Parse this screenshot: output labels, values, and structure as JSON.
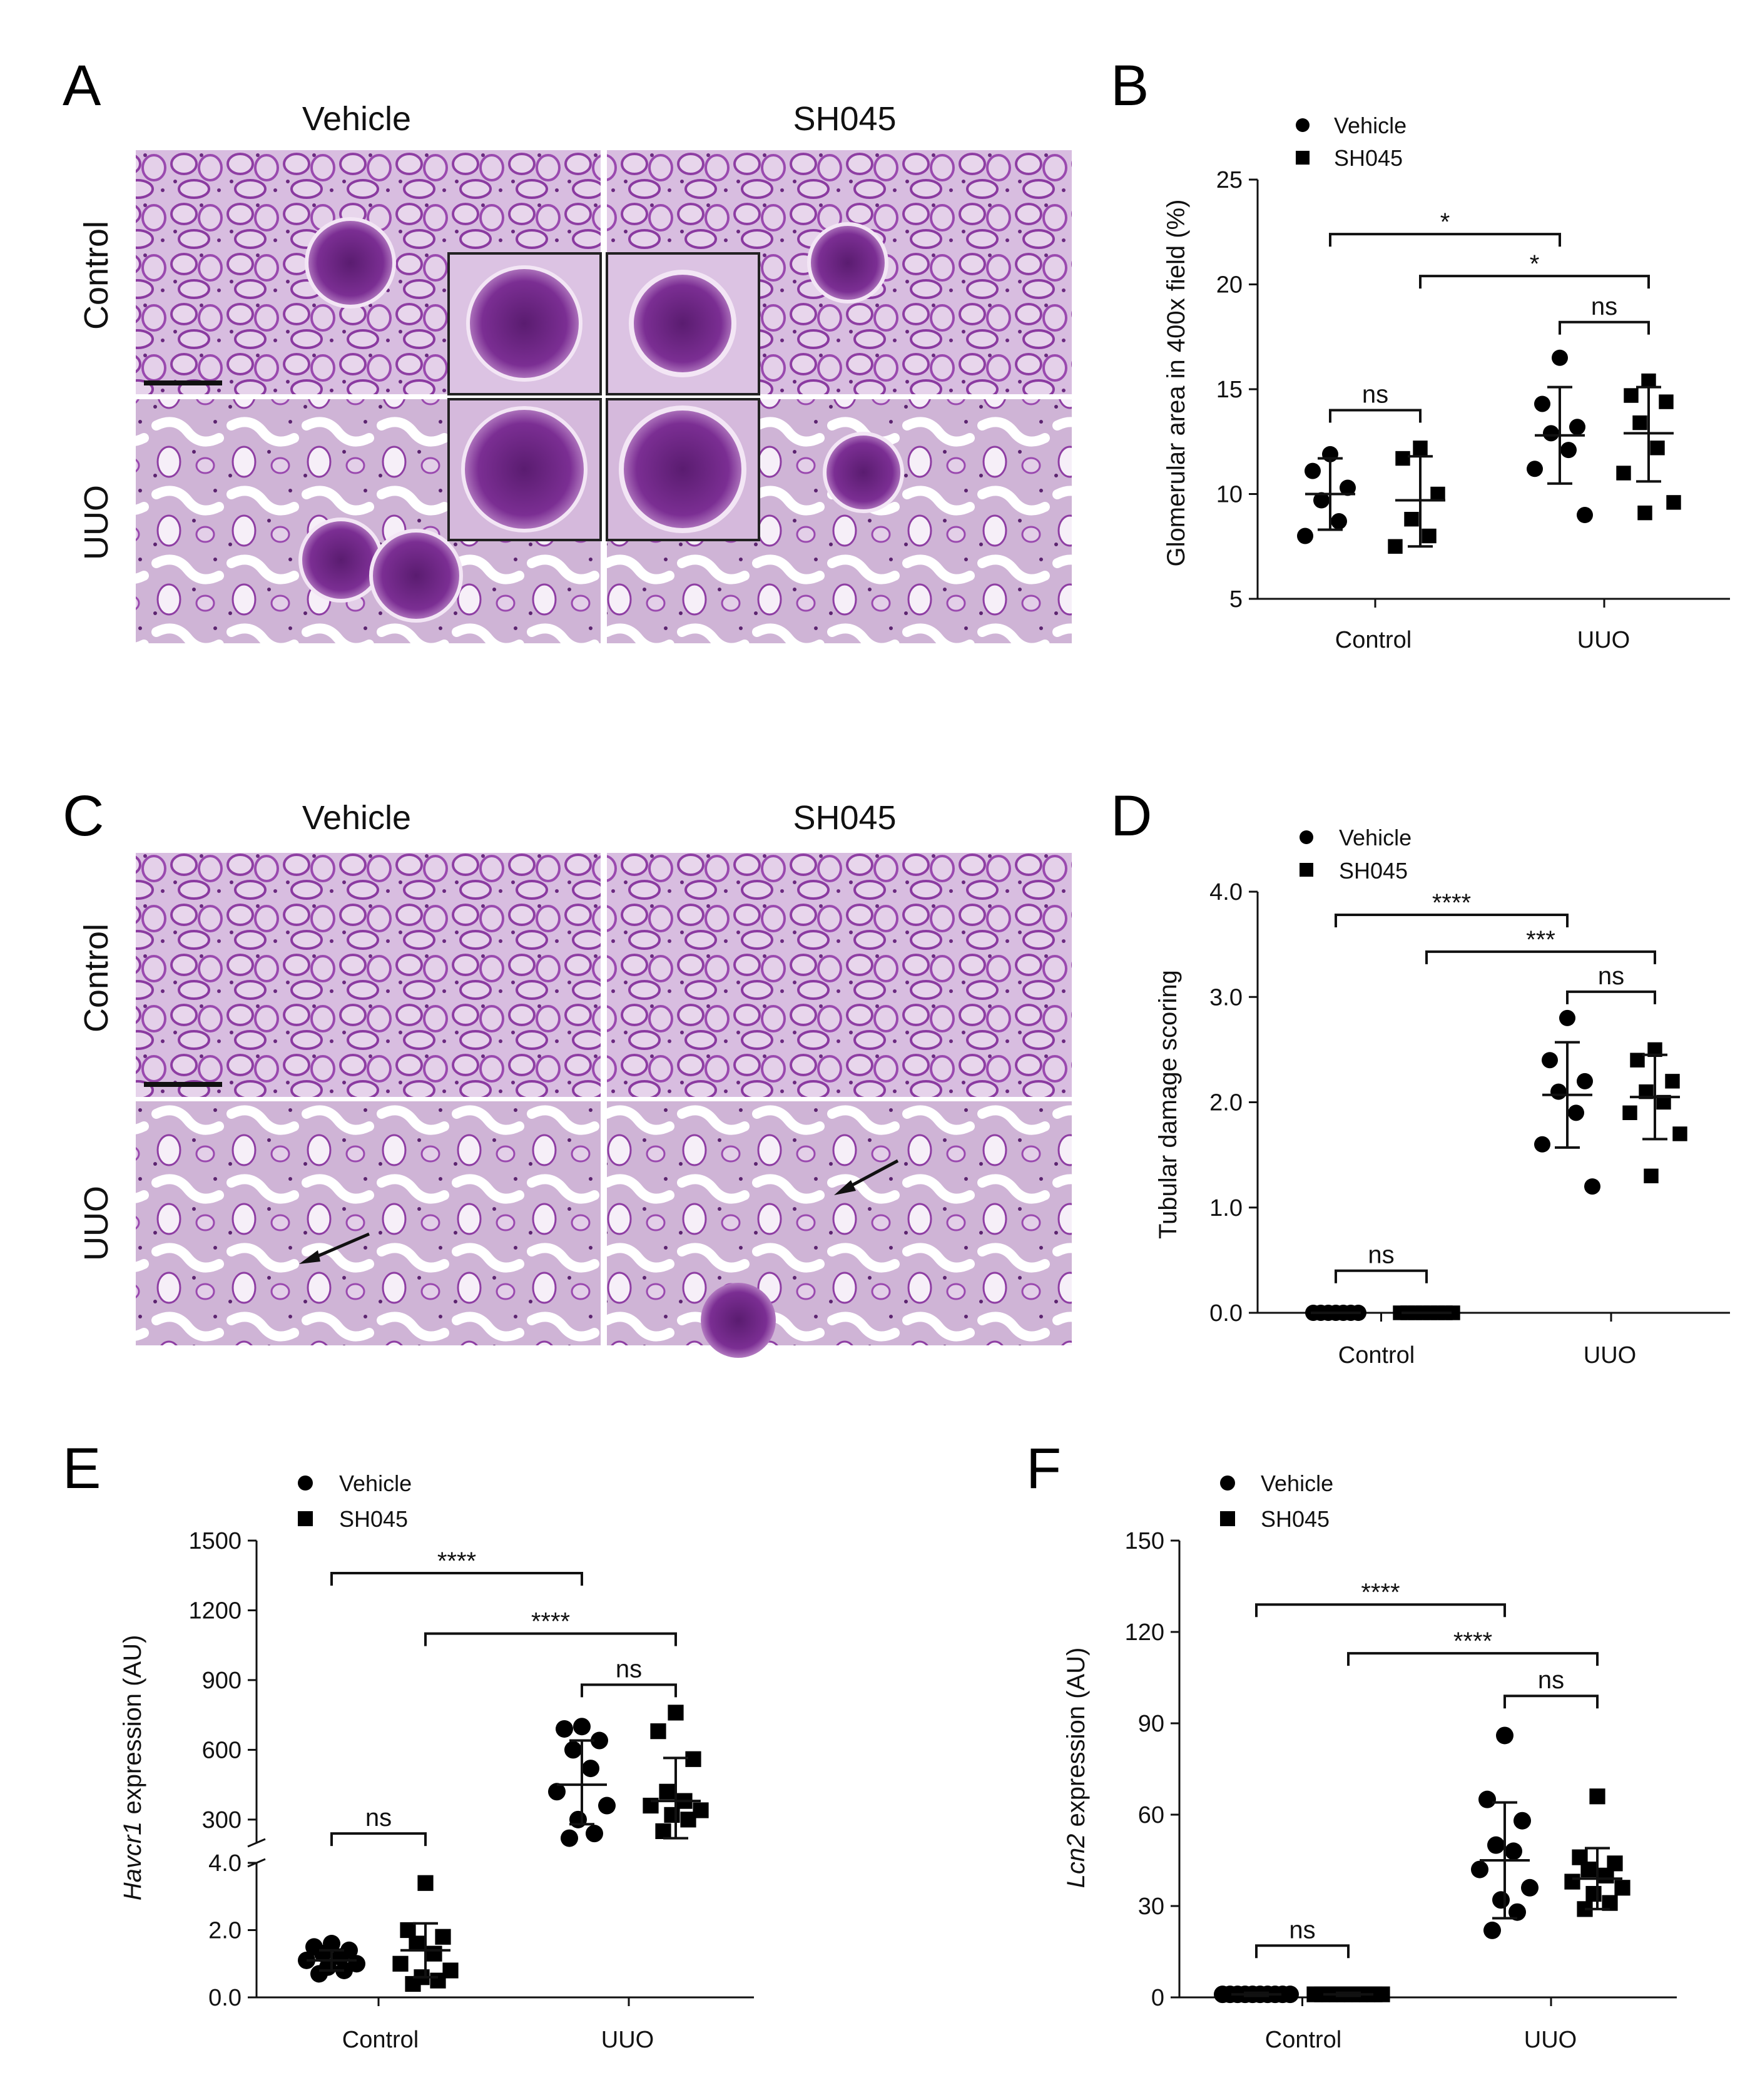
{
  "colors": {
    "stain_bg": "#d4b3dc",
    "stain_dark": "#7a2d8f",
    "stain_mid": "#a866b6",
    "marker": "#000000"
  },
  "panelA": {
    "letter": "A",
    "col_titles": [
      "Vehicle",
      "SH045"
    ],
    "row_titles": [
      "Control",
      "UUO"
    ]
  },
  "panelC": {
    "letter": "C",
    "col_titles": [
      "Vehicle",
      "SH045"
    ],
    "row_titles": [
      "Control",
      "UUO"
    ]
  },
  "chart_data": [
    {
      "panel": "B",
      "type": "scatter",
      "ylabel": "Glomerular area in 400x field (%)",
      "categories": [
        "Control",
        "UUO"
      ],
      "yticks": [
        5,
        10,
        15,
        20,
        25
      ],
      "ylim": [
        5,
        25
      ],
      "legend": [
        "Vehicle",
        "SH045"
      ],
      "series": [
        {
          "name": "Vehicle",
          "marker": "circle",
          "groups": [
            {
              "category": "Control",
              "values": [
                11.9,
                11.1,
                10.3,
                9.7,
                8.7,
                8.0
              ],
              "mean": 10.0,
              "sd_low": 8.3,
              "sd_high": 11.7
            },
            {
              "category": "UUO",
              "values": [
                16.5,
                14.3,
                13.2,
                12.9,
                12.1,
                11.2,
                9.0
              ],
              "mean": 12.8,
              "sd_low": 10.5,
              "sd_high": 15.1
            }
          ]
        },
        {
          "name": "SH045",
          "marker": "square",
          "groups": [
            {
              "category": "Control",
              "values": [
                12.2,
                11.7,
                10.0,
                8.8,
                8.0,
                7.5
              ],
              "mean": 9.7,
              "sd_low": 7.5,
              "sd_high": 11.8
            },
            {
              "category": "UUO",
              "values": [
                15.4,
                14.7,
                14.4,
                13.4,
                12.2,
                11.0,
                9.6,
                9.1
              ],
              "mean": 12.9,
              "sd_low": 10.6,
              "sd_high": 15.1
            }
          ]
        }
      ],
      "annotations": [
        {
          "text": "*",
          "from": "Control-Vehicle",
          "to": "UUO-Vehicle",
          "y": 22.4
        },
        {
          "text": "*",
          "from": "Control-SH045",
          "to": "UUO-SH045",
          "y": 20.4
        },
        {
          "text": "ns",
          "from": "UUO-Vehicle",
          "to": "UUO-SH045",
          "y": 18.2
        },
        {
          "text": "ns",
          "from": "Control-Vehicle",
          "to": "Control-SH045",
          "y": 14.0
        }
      ]
    },
    {
      "panel": "D",
      "type": "scatter",
      "ylabel": "Tubular damage scoring",
      "categories": [
        "Control",
        "UUO"
      ],
      "yticks": [
        "0.0",
        "1.0",
        "2.0",
        "3.0",
        "4.0"
      ],
      "ylim": [
        0,
        4
      ],
      "legend": [
        "Vehicle",
        "SH045"
      ],
      "series": [
        {
          "name": "Vehicle",
          "marker": "circle",
          "groups": [
            {
              "category": "Control",
              "values": [
                0,
                0,
                0,
                0,
                0,
                0,
                0
              ],
              "mean": 0,
              "sd_low": 0,
              "sd_high": 0
            },
            {
              "category": "UUO",
              "values": [
                2.8,
                2.4,
                2.2,
                2.1,
                1.9,
                1.6,
                1.2
              ],
              "mean": 2.07,
              "sd_low": 1.57,
              "sd_high": 2.57
            }
          ]
        },
        {
          "name": "SH045",
          "marker": "square",
          "groups": [
            {
              "category": "Control",
              "values": [
                0,
                0,
                0,
                0,
                0,
                0,
                0,
                0
              ],
              "mean": 0,
              "sd_low": 0,
              "sd_high": 0
            },
            {
              "category": "UUO",
              "values": [
                2.5,
                2.4,
                2.2,
                2.1,
                2.0,
                1.9,
                1.7,
                1.3
              ],
              "mean": 2.05,
              "sd_low": 1.65,
              "sd_high": 2.45
            }
          ]
        }
      ],
      "annotations": [
        {
          "text": "****",
          "from": "Control-Vehicle",
          "to": "UUO-Vehicle",
          "y": 3.78
        },
        {
          "text": "***",
          "from": "Control-SH045",
          "to": "UUO-SH045",
          "y": 3.43
        },
        {
          "text": "ns",
          "from": "UUO-Vehicle",
          "to": "UUO-SH045",
          "y": 3.05
        },
        {
          "text": "ns",
          "from": "Control-Vehicle",
          "to": "Control-SH045",
          "y": 0.4
        }
      ]
    },
    {
      "panel": "E",
      "type": "scatter",
      "ylabel_italic": "Havcr1",
      "ylabel_rest": " expression (AU)",
      "categories": [
        "Control",
        "UUO"
      ],
      "broken_axis": {
        "lower_ticks": [
          "0.0",
          "2.0",
          "4.0"
        ],
        "lower_range": [
          0,
          4
        ],
        "upper_ticks": [
          "300",
          "600",
          "900",
          "1200",
          "1500"
        ],
        "upper_range": [
          200,
          1500
        ]
      },
      "legend": [
        "Vehicle",
        "SH045"
      ],
      "series": [
        {
          "name": "Vehicle",
          "marker": "circle",
          "groups": [
            {
              "category": "Control",
              "values": [
                1.6,
                1.5,
                1.4,
                1.3,
                1.2,
                1.1,
                1.0,
                0.9,
                0.8,
                0.7
              ],
              "mean": 1.1,
              "sd_low": 0.8,
              "sd_high": 1.4
            },
            {
              "category": "UUO",
              "values": [
                700,
                690,
                640,
                600,
                520,
                420,
                360,
                300,
                240,
                220
              ],
              "mean": 450,
              "sd_low": 280,
              "sd_high": 640
            }
          ]
        },
        {
          "name": "SH045",
          "marker": "square",
          "groups": [
            {
              "category": "Control",
              "values": [
                3.4,
                2.0,
                1.8,
                1.6,
                1.3,
                1.0,
                0.8,
                0.6,
                0.5,
                0.4
              ],
              "mean": 1.4,
              "sd_low": 0.6,
              "sd_high": 2.2
            },
            {
              "category": "UUO",
              "values": [
                760,
                680,
                560,
                420,
                380,
                360,
                340,
                320,
                300,
                250
              ],
              "mean": 380,
              "sd_low": 220,
              "sd_high": 565
            }
          ]
        }
      ],
      "annotations": [
        {
          "text": "****",
          "from": "Control-Vehicle",
          "to": "UUO-Vehicle",
          "y": 1360
        },
        {
          "text": "****",
          "from": "Control-SH045",
          "to": "UUO-SH045",
          "y": 1100
        },
        {
          "text": "ns",
          "from": "UUO-Vehicle",
          "to": "UUO-SH045",
          "y": 880
        },
        {
          "text": "ns",
          "from": "Control-Vehicle",
          "to": "Control-SH045",
          "y": 240
        }
      ]
    },
    {
      "panel": "F",
      "type": "scatter",
      "ylabel_italic": "Lcn2",
      "ylabel_rest": " expression (AU)",
      "categories": [
        "Control",
        "UUO"
      ],
      "yticks": [
        0,
        30,
        60,
        90,
        120,
        150
      ],
      "ylim": [
        0,
        150
      ],
      "legend": [
        "Vehicle",
        "SH045"
      ],
      "series": [
        {
          "name": "Vehicle",
          "marker": "circle",
          "groups": [
            {
              "category": "Control",
              "values": [
                1,
                1,
                1,
                1,
                1,
                1,
                1,
                1,
                1,
                1
              ],
              "mean": 1,
              "sd_low": 0.5,
              "sd_high": 1.5
            },
            {
              "category": "UUO",
              "values": [
                86,
                65,
                58,
                50,
                48,
                42,
                36,
                32,
                28,
                22
              ],
              "mean": 45,
              "sd_low": 26,
              "sd_high": 64
            }
          ]
        },
        {
          "name": "SH045",
          "marker": "square",
          "groups": [
            {
              "category": "Control",
              "values": [
                1,
                1,
                1,
                1,
                1,
                1,
                1,
                1,
                1,
                1
              ],
              "mean": 1,
              "sd_low": 0.5,
              "sd_high": 1.5
            },
            {
              "category": "UUO",
              "values": [
                66,
                46,
                44,
                42,
                40,
                38,
                36,
                34,
                31,
                29
              ],
              "mean": 39,
              "sd_low": 29,
              "sd_high": 49
            }
          ]
        }
      ],
      "annotations": [
        {
          "text": "****",
          "from": "Control-Vehicle",
          "to": "UUO-Vehicle",
          "y": 129
        },
        {
          "text": "****",
          "from": "Control-SH045",
          "to": "UUO-SH045",
          "y": 113
        },
        {
          "text": "ns",
          "from": "UUO-Vehicle",
          "to": "UUO-SH045",
          "y": 99
        },
        {
          "text": "ns",
          "from": "Control-Vehicle",
          "to": "Control-SH045",
          "y": 17
        }
      ]
    }
  ]
}
